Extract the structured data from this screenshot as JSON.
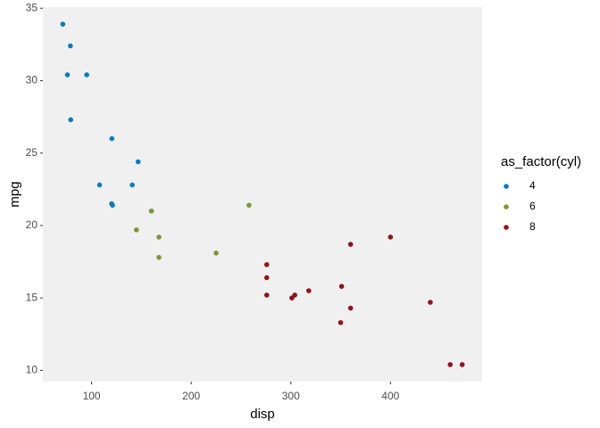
{
  "chart_data": {
    "type": "scatter",
    "x_label": "disp",
    "y_label": "mpg",
    "legend_title": "as_factor(cyl)",
    "xlim": [
      51.055,
      492.045
    ],
    "ylim": [
      9.225,
      35.075
    ],
    "xticks": [
      100,
      200,
      300,
      400
    ],
    "yticks": [
      10,
      15,
      20,
      25,
      30,
      35
    ],
    "grid": false,
    "legend": "right",
    "panel_color": "#f0f0f0",
    "series": [
      {
        "name": "4",
        "color": "#0c7bbd",
        "x": [
          108,
          146.7,
          140.8,
          78.7,
          75.7,
          71.1,
          120.1,
          79,
          120.3,
          95.1,
          121
        ],
        "values": [
          22.8,
          24.4,
          22.8,
          32.4,
          30.4,
          33.9,
          21.5,
          27.3,
          26,
          30.4,
          21.4
        ]
      },
      {
        "name": "6",
        "color": "#7d9638",
        "x": [
          160,
          160,
          258,
          225,
          167.6,
          167.6,
          145
        ],
        "values": [
          21,
          21,
          21.4,
          18.1,
          19.2,
          17.8,
          19.7
        ]
      },
      {
        "name": "8",
        "color": "#8e1418",
        "x": [
          360,
          360,
          275.8,
          275.8,
          275.8,
          472,
          460,
          440,
          318,
          304,
          350,
          400,
          351,
          301
        ],
        "values": [
          18.7,
          14.3,
          16.4,
          17.3,
          15.2,
          10.4,
          10.4,
          14.7,
          15.5,
          15.2,
          13.3,
          19.2,
          15.8,
          15
        ]
      }
    ]
  }
}
